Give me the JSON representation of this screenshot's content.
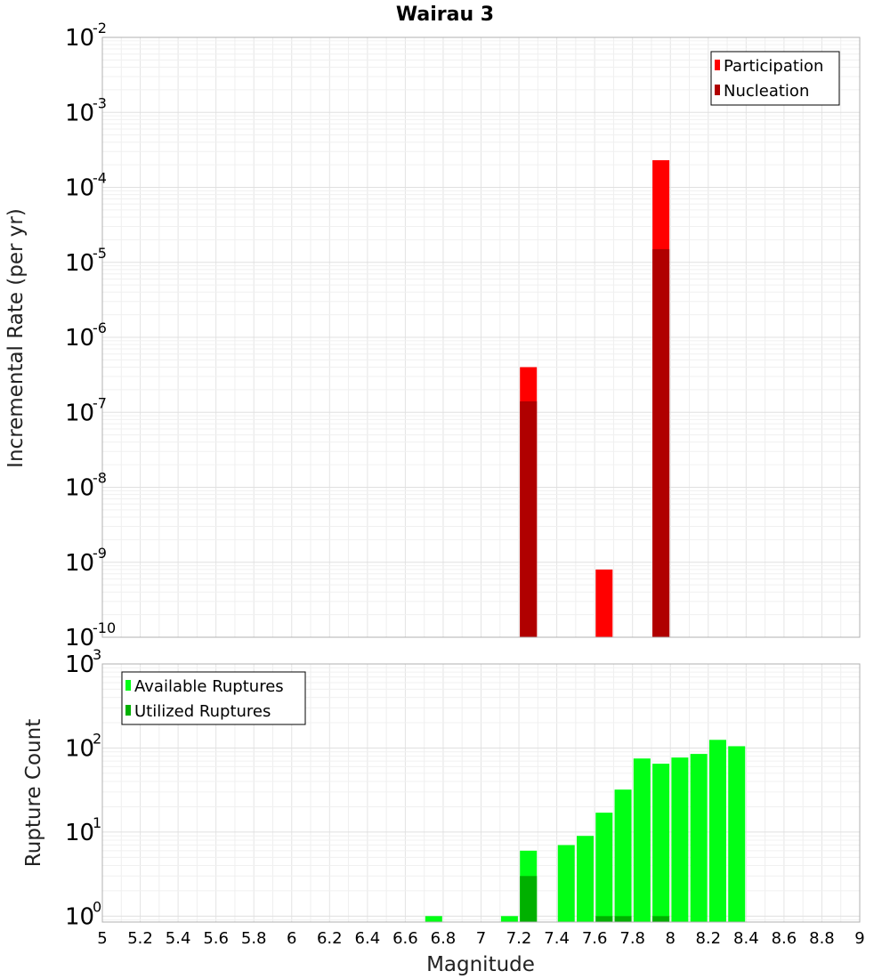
{
  "chart_data": {
    "title": "Wairau 3",
    "xlabel": "Magnitude",
    "x_ticks": [
      "5",
      "5.2",
      "5.4",
      "5.6",
      "5.8",
      "6",
      "6.2",
      "6.4",
      "6.6",
      "6.8",
      "7",
      "7.2",
      "7.4",
      "7.6",
      "7.8",
      "8",
      "8.2",
      "8.4",
      "8.6",
      "8.8",
      "9"
    ],
    "xlim": [
      5,
      9
    ],
    "panels": [
      {
        "type": "bar",
        "ylabel": "Incremental Rate (per yr)",
        "yscale": "log",
        "ylim": [
          1e-10,
          0.01
        ],
        "y_tick_exponents": [
          "-10",
          "-9",
          "-8",
          "-7",
          "-6",
          "-5",
          "-4",
          "-3",
          "-2"
        ],
        "legend": "top-right",
        "series": [
          {
            "name": "Participation",
            "color": "#ff0000",
            "x": [
              7.25,
              7.65,
              7.95
            ],
            "values": [
              4e-07,
              8e-10,
              0.00023
            ]
          },
          {
            "name": "Nucleation",
            "color": "#b00000",
            "x": [
              7.25,
              7.65,
              7.95
            ],
            "values": [
              1.4e-07,
              1e-10,
              1.5e-05
            ]
          }
        ]
      },
      {
        "type": "bar",
        "ylabel": "Rupture Count",
        "yscale": "log",
        "ylim": [
          0.85,
          1000
        ],
        "y_tick_exponents": [
          "0",
          "1",
          "2",
          "3"
        ],
        "legend": "top-left",
        "series": [
          {
            "name": "Available Ruptures",
            "color": "#00ff14",
            "x": [
              6.75,
              7.15,
              7.25,
              7.45,
              7.55,
              7.65,
              7.75,
              7.85,
              7.95,
              8.05,
              8.15,
              8.25,
              8.35
            ],
            "values": [
              1,
              1,
              6,
              7,
              9,
              17,
              32,
              75,
              65,
              77,
              85,
              125,
              105
            ]
          },
          {
            "name": "Utilized Ruptures",
            "color": "#00b000",
            "x": [
              7.25,
              7.65,
              7.75,
              7.95
            ],
            "values": [
              3,
              1,
              1,
              1
            ]
          }
        ]
      }
    ]
  }
}
